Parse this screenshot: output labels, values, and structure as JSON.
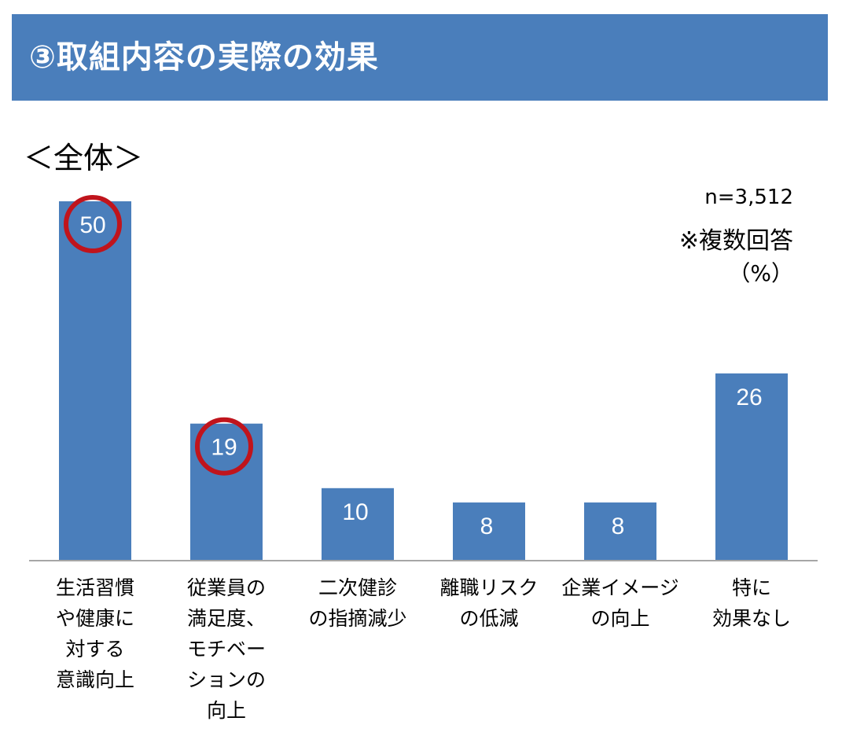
{
  "header": {
    "title": "③取組内容の実際の効果"
  },
  "subtitle": "＜全体＞",
  "notes": {
    "sample": "n=3,512",
    "multi": "※複数回答",
    "unit": "（%）"
  },
  "chart_data": {
    "type": "bar",
    "categories": [
      "生活習慣や健康に対する意識向上",
      "従業員の満足度、モチベーションの向上",
      "二次健診の指摘減少",
      "離職リスクの低減",
      "企業イメージの向上",
      "特に効果なし"
    ],
    "category_lines": [
      [
        "生活習慣",
        "や健康に",
        "対する",
        "意識向上"
      ],
      [
        "従業員の",
        "満足度、",
        "モチベー",
        "ションの",
        "向上"
      ],
      [
        "二次健診",
        "の指摘減少"
      ],
      [
        "離職リスク",
        "の低減"
      ],
      [
        "企業イメージ",
        "の向上"
      ],
      [
        "特に",
        "効果なし"
      ]
    ],
    "values": [
      50,
      19,
      10,
      8,
      8,
      26
    ],
    "value_labels": [
      "50",
      "19",
      "10",
      "8",
      "8",
      "26"
    ],
    "highlighted": [
      true,
      true,
      false,
      false,
      false,
      false
    ],
    "bar_color": "#4a7ebb",
    "highlight_color": "#c0141c",
    "ylim": [
      0,
      50
    ],
    "grid": false,
    "legend": "none"
  }
}
